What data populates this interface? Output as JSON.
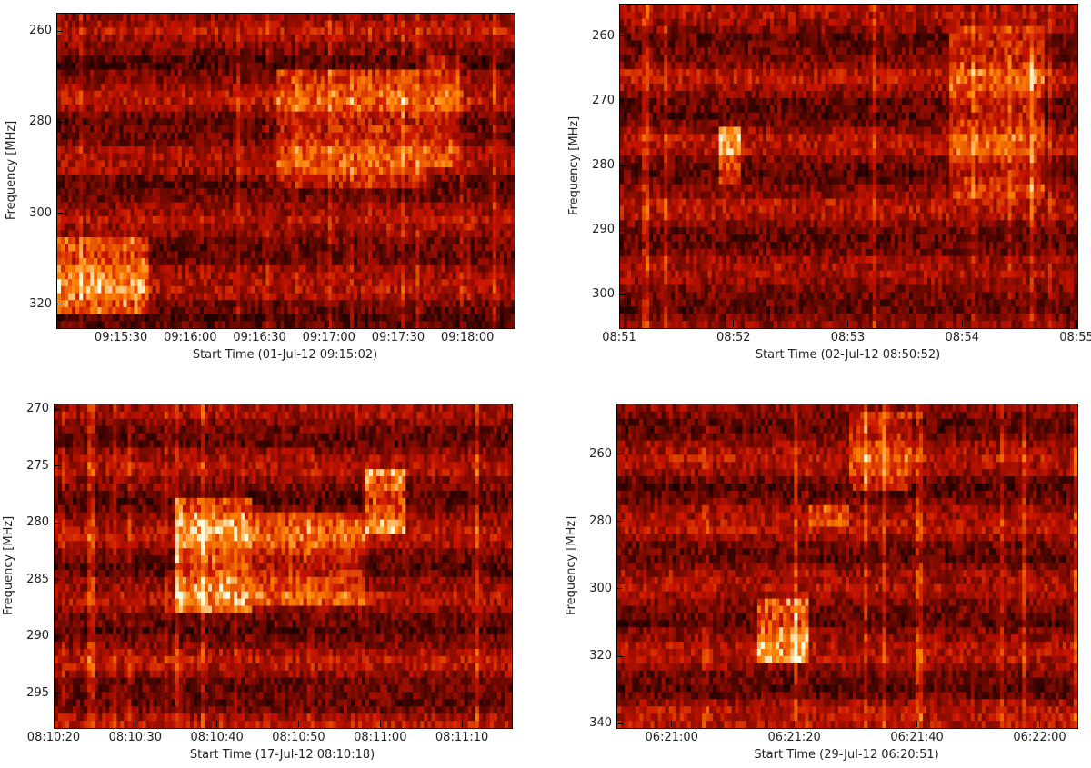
{
  "chart_data": [
    {
      "type": "heatmap",
      "ylabel": "Frequency [MHz]",
      "xlabel": "Start Time (01-Jul-12 09:15:02)",
      "yticks": [
        "260",
        "280",
        "300",
        "320"
      ],
      "ytick_values": [
        260,
        280,
        300,
        320
      ],
      "ylim": [
        256,
        325
      ],
      "y_inverted": true,
      "xticks": [
        "09:15:30",
        "09:16:00",
        "09:16:30",
        "09:17:00",
        "09:17:30",
        "09:18:00"
      ],
      "xtick_values": [
        28,
        58,
        88,
        118,
        148,
        178
      ],
      "xlim": [
        0,
        198
      ],
      "colormap": "red-temperature",
      "features": [
        {
          "t": [
            0,
            40
          ],
          "f": [
            305,
            322
          ],
          "intensity": "high"
        },
        {
          "t": [
            95,
            160
          ],
          "f": [
            268,
            295
          ],
          "intensity": "medium"
        },
        {
          "t": [
            160,
            175
          ],
          "f": [
            265,
            290
          ],
          "intensity": "medium"
        }
      ]
    },
    {
      "type": "heatmap",
      "ylabel": "Frequency [MHz]",
      "xlabel": "Start Time (02-Jul-12 08:50:52)",
      "yticks": [
        "260",
        "270",
        "280",
        "290",
        "300"
      ],
      "ytick_values": [
        260,
        270,
        280,
        290,
        300
      ],
      "ylim": [
        255,
        305
      ],
      "y_inverted": true,
      "xticks": [
        "08:51",
        "08:52",
        "08:53",
        "08:54",
        "08:55"
      ],
      "xtick_values": [
        8,
        68,
        128,
        188,
        248
      ],
      "xlim": [
        8,
        248
      ],
      "colormap": "red-temperature",
      "features": [
        {
          "t": [
            60,
            72
          ],
          "f": [
            274,
            283
          ],
          "intensity": "high"
        },
        {
          "t": [
            180,
            230
          ],
          "f": [
            258,
            285
          ],
          "intensity": "medium"
        }
      ]
    },
    {
      "type": "heatmap",
      "ylabel": "Frequency [MHz]",
      "xlabel": "Start Time (17-Jul-12 08:10:18)",
      "yticks": [
        "270",
        "275",
        "280",
        "285",
        "290",
        "295"
      ],
      "ytick_values": [
        270,
        275,
        280,
        285,
        290,
        295
      ],
      "ylim": [
        269.5,
        298
      ],
      "y_inverted": true,
      "xticks": [
        "08:10:20",
        "08:10:30",
        "08:10:40",
        "08:10:50",
        "08:11:00",
        "08:11:10"
      ],
      "xtick_values": [
        2,
        12,
        22,
        32,
        42,
        52
      ],
      "xlim": [
        2,
        58
      ],
      "colormap": "red-temperature",
      "features": [
        {
          "t": [
            17,
            26
          ],
          "f": [
            278,
            288
          ],
          "intensity": "high"
        },
        {
          "t": [
            26,
            40
          ],
          "f": [
            279,
            287
          ],
          "intensity": "medium"
        },
        {
          "t": [
            40,
            45
          ],
          "f": [
            275,
            281
          ],
          "intensity": "high"
        }
      ]
    },
    {
      "type": "heatmap",
      "ylabel": "Frequency [MHz]",
      "xlabel": "Start Time (29-Jul-12 06:20:51)",
      "yticks": [
        "260",
        "280",
        "300",
        "320",
        "340"
      ],
      "ytick_values": [
        260,
        280,
        300,
        320,
        340
      ],
      "ylim": [
        245,
        341
      ],
      "y_inverted": true,
      "xticks": [
        "06:21:00",
        "06:21:20",
        "06:21:40",
        "06:22:00"
      ],
      "xtick_values": [
        9,
        29,
        49,
        69
      ],
      "xlim": [
        0,
        75
      ],
      "colormap": "red-temperature",
      "features": [
        {
          "t": [
            23,
            31
          ],
          "f": [
            302,
            322
          ],
          "intensity": "high"
        },
        {
          "t": [
            31,
            38
          ],
          "f": [
            275,
            282
          ],
          "intensity": "medium"
        },
        {
          "t": [
            38,
            48
          ],
          "f": [
            248,
            270
          ],
          "intensity": "medium"
        }
      ]
    }
  ]
}
